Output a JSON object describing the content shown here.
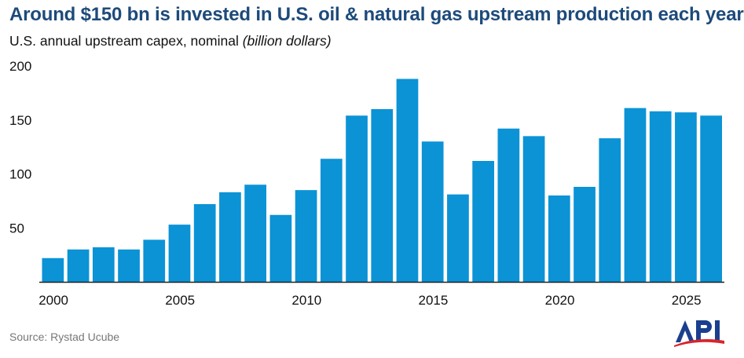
{
  "title": "Around $150 bn is invested in U.S. oil & natural gas upstream production each year",
  "subtitle": "U.S. annual upstream capex, nominal",
  "subtitle_unit": "(billion dollars)",
  "source": "Source: Rystad Ucube",
  "logo_text": "API",
  "colors": {
    "bar": "#0b93d6",
    "title": "#1d4a7a",
    "axis": "#222222",
    "logo_blue": "#1b3f8f",
    "logo_red": "#d6252d"
  },
  "chart_data": {
    "type": "bar",
    "title": "Around $150 bn is invested in U.S. oil & natural gas upstream production each year",
    "ylabel": "U.S. annual upstream capex, nominal (billion dollars)",
    "xlabel": "",
    "categories": [
      2000,
      2001,
      2002,
      2003,
      2004,
      2005,
      2006,
      2007,
      2008,
      2009,
      2010,
      2011,
      2012,
      2013,
      2014,
      2015,
      2016,
      2017,
      2018,
      2019,
      2020,
      2021,
      2022,
      2023,
      2024,
      2025,
      2026
    ],
    "values": [
      22,
      30,
      32,
      30,
      39,
      53,
      72,
      83,
      90,
      62,
      85,
      114,
      154,
      160,
      188,
      130,
      81,
      112,
      142,
      135,
      80,
      88,
      133,
      161,
      158,
      157,
      154
    ],
    "ylim": [
      0,
      200
    ],
    "yticks": [
      50,
      100,
      150,
      200
    ],
    "xticks": [
      2000,
      2005,
      2010,
      2015,
      2020,
      2025
    ],
    "grid": false,
    "legend": "none"
  }
}
